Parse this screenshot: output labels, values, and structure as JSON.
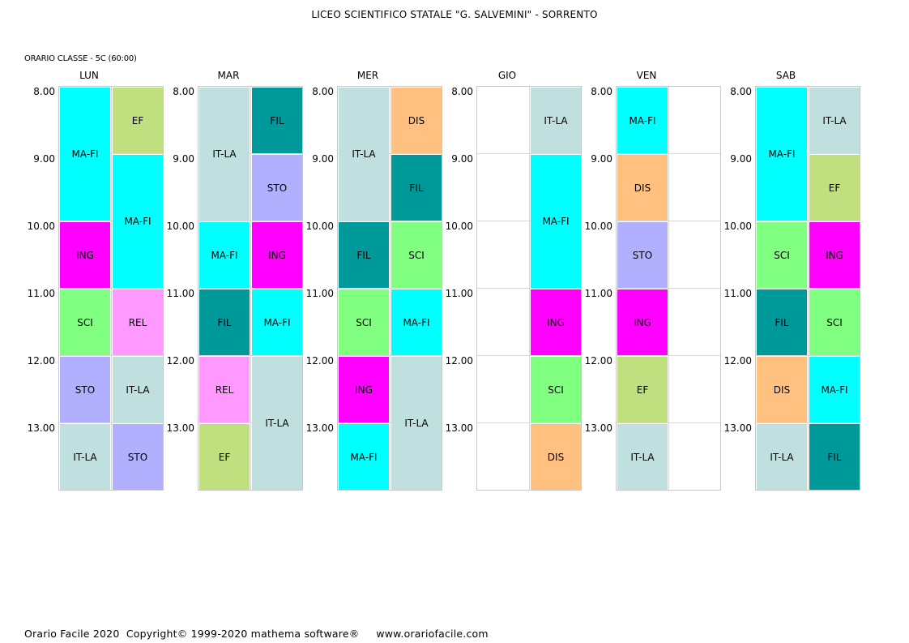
{
  "header": {
    "school": "LICEO SCIENTIFICO STATALE \"G. SALVEMINI\" - SORRENTO",
    "class_label": "ORARIO CLASSE  -  5C (60:00)"
  },
  "hours": [
    "8.00",
    "9.00",
    "10.00",
    "11.00",
    "12.00",
    "13.00"
  ],
  "colors": {
    "MA-FI": "#00ffff",
    "EF": "#c0e080",
    "ING": "#ff00ff",
    "SCI": "#80ff80",
    "REL": "#ff99ff",
    "STO": "#b0b0ff",
    "IT-LA": "#c0e0e0",
    "FIL": "#009999",
    "DIS": "#ffc080"
  },
  "days": [
    {
      "name": "LUN",
      "blocks": [
        {
          "subject": "MA-FI",
          "col": 0,
          "start": 0,
          "span": 2
        },
        {
          "subject": "EF",
          "col": 1,
          "start": 0,
          "span": 1
        },
        {
          "subject": "MA-FI",
          "col": 1,
          "start": 1,
          "span": 2
        },
        {
          "subject": "ING",
          "col": 0,
          "start": 2,
          "span": 1
        },
        {
          "subject": "SCI",
          "col": 0,
          "start": 3,
          "span": 1
        },
        {
          "subject": "REL",
          "col": 1,
          "start": 3,
          "span": 1
        },
        {
          "subject": "STO",
          "col": 0,
          "start": 4,
          "span": 1
        },
        {
          "subject": "IT-LA",
          "col": 1,
          "start": 4,
          "span": 1
        },
        {
          "subject": "IT-LA",
          "col": 0,
          "start": 5,
          "span": 1
        },
        {
          "subject": "STO",
          "col": 1,
          "start": 5,
          "span": 1
        }
      ]
    },
    {
      "name": "MAR",
      "blocks": [
        {
          "subject": "IT-LA",
          "col": 0,
          "start": 0,
          "span": 2
        },
        {
          "subject": "FIL",
          "col": 1,
          "start": 0,
          "span": 1
        },
        {
          "subject": "STO",
          "col": 1,
          "start": 1,
          "span": 1
        },
        {
          "subject": "MA-FI",
          "col": 0,
          "start": 2,
          "span": 1
        },
        {
          "subject": "ING",
          "col": 1,
          "start": 2,
          "span": 1
        },
        {
          "subject": "FIL",
          "col": 0,
          "start": 3,
          "span": 1
        },
        {
          "subject": "MA-FI",
          "col": 1,
          "start": 3,
          "span": 1
        },
        {
          "subject": "REL",
          "col": 0,
          "start": 4,
          "span": 1
        },
        {
          "subject": "IT-LA",
          "col": 1,
          "start": 4,
          "span": 2
        },
        {
          "subject": "EF",
          "col": 0,
          "start": 5,
          "span": 1
        }
      ]
    },
    {
      "name": "MER",
      "blocks": [
        {
          "subject": "IT-LA",
          "col": 0,
          "start": 0,
          "span": 2
        },
        {
          "subject": "DIS",
          "col": 1,
          "start": 0,
          "span": 1
        },
        {
          "subject": "FIL",
          "col": 1,
          "start": 1,
          "span": 1
        },
        {
          "subject": "FIL",
          "col": 0,
          "start": 2,
          "span": 1
        },
        {
          "subject": "SCI",
          "col": 1,
          "start": 2,
          "span": 1
        },
        {
          "subject": "SCI",
          "col": 0,
          "start": 3,
          "span": 1
        },
        {
          "subject": "MA-FI",
          "col": 1,
          "start": 3,
          "span": 1
        },
        {
          "subject": "ING",
          "col": 0,
          "start": 4,
          "span": 1
        },
        {
          "subject": "IT-LA",
          "col": 1,
          "start": 4,
          "span": 2
        },
        {
          "subject": "MA-FI",
          "col": 0,
          "start": 5,
          "span": 1
        }
      ]
    },
    {
      "name": "GIO",
      "blocks": [
        {
          "subject": "IT-LA",
          "col": 1,
          "start": 0,
          "span": 1
        },
        {
          "subject": "MA-FI",
          "col": 1,
          "start": 1,
          "span": 2
        },
        {
          "subject": "ING",
          "col": 1,
          "start": 3,
          "span": 1
        },
        {
          "subject": "SCI",
          "col": 1,
          "start": 4,
          "span": 1
        },
        {
          "subject": "DIS",
          "col": 1,
          "start": 5,
          "span": 1
        }
      ]
    },
    {
      "name": "VEN",
      "blocks": [
        {
          "subject": "MA-FI",
          "col": 0,
          "start": 0,
          "span": 1
        },
        {
          "subject": "DIS",
          "col": 0,
          "start": 1,
          "span": 1
        },
        {
          "subject": "STO",
          "col": 0,
          "start": 2,
          "span": 1
        },
        {
          "subject": "ING",
          "col": 0,
          "start": 3,
          "span": 1
        },
        {
          "subject": "EF",
          "col": 0,
          "start": 4,
          "span": 1
        },
        {
          "subject": "IT-LA",
          "col": 0,
          "start": 5,
          "span": 1
        }
      ]
    },
    {
      "name": "SAB",
      "blocks": [
        {
          "subject": "MA-FI",
          "col": 0,
          "start": 0,
          "span": 2
        },
        {
          "subject": "IT-LA",
          "col": 1,
          "start": 0,
          "span": 1
        },
        {
          "subject": "EF",
          "col": 1,
          "start": 1,
          "span": 1
        },
        {
          "subject": "SCI",
          "col": 0,
          "start": 2,
          "span": 1
        },
        {
          "subject": "ING",
          "col": 1,
          "start": 2,
          "span": 1
        },
        {
          "subject": "FIL",
          "col": 0,
          "start": 3,
          "span": 1
        },
        {
          "subject": "SCI",
          "col": 1,
          "start": 3,
          "span": 1
        },
        {
          "subject": "DIS",
          "col": 0,
          "start": 4,
          "span": 1
        },
        {
          "subject": "MA-FI",
          "col": 1,
          "start": 4,
          "span": 1
        },
        {
          "subject": "IT-LA",
          "col": 0,
          "start": 5,
          "span": 1
        },
        {
          "subject": "FIL",
          "col": 1,
          "start": 5,
          "span": 1
        }
      ]
    }
  ],
  "footer": {
    "product": "Orario Facile 2020",
    "copyright": "Copyright© 1999-2020 mathema software®",
    "website": "www.orariofacile.com"
  }
}
